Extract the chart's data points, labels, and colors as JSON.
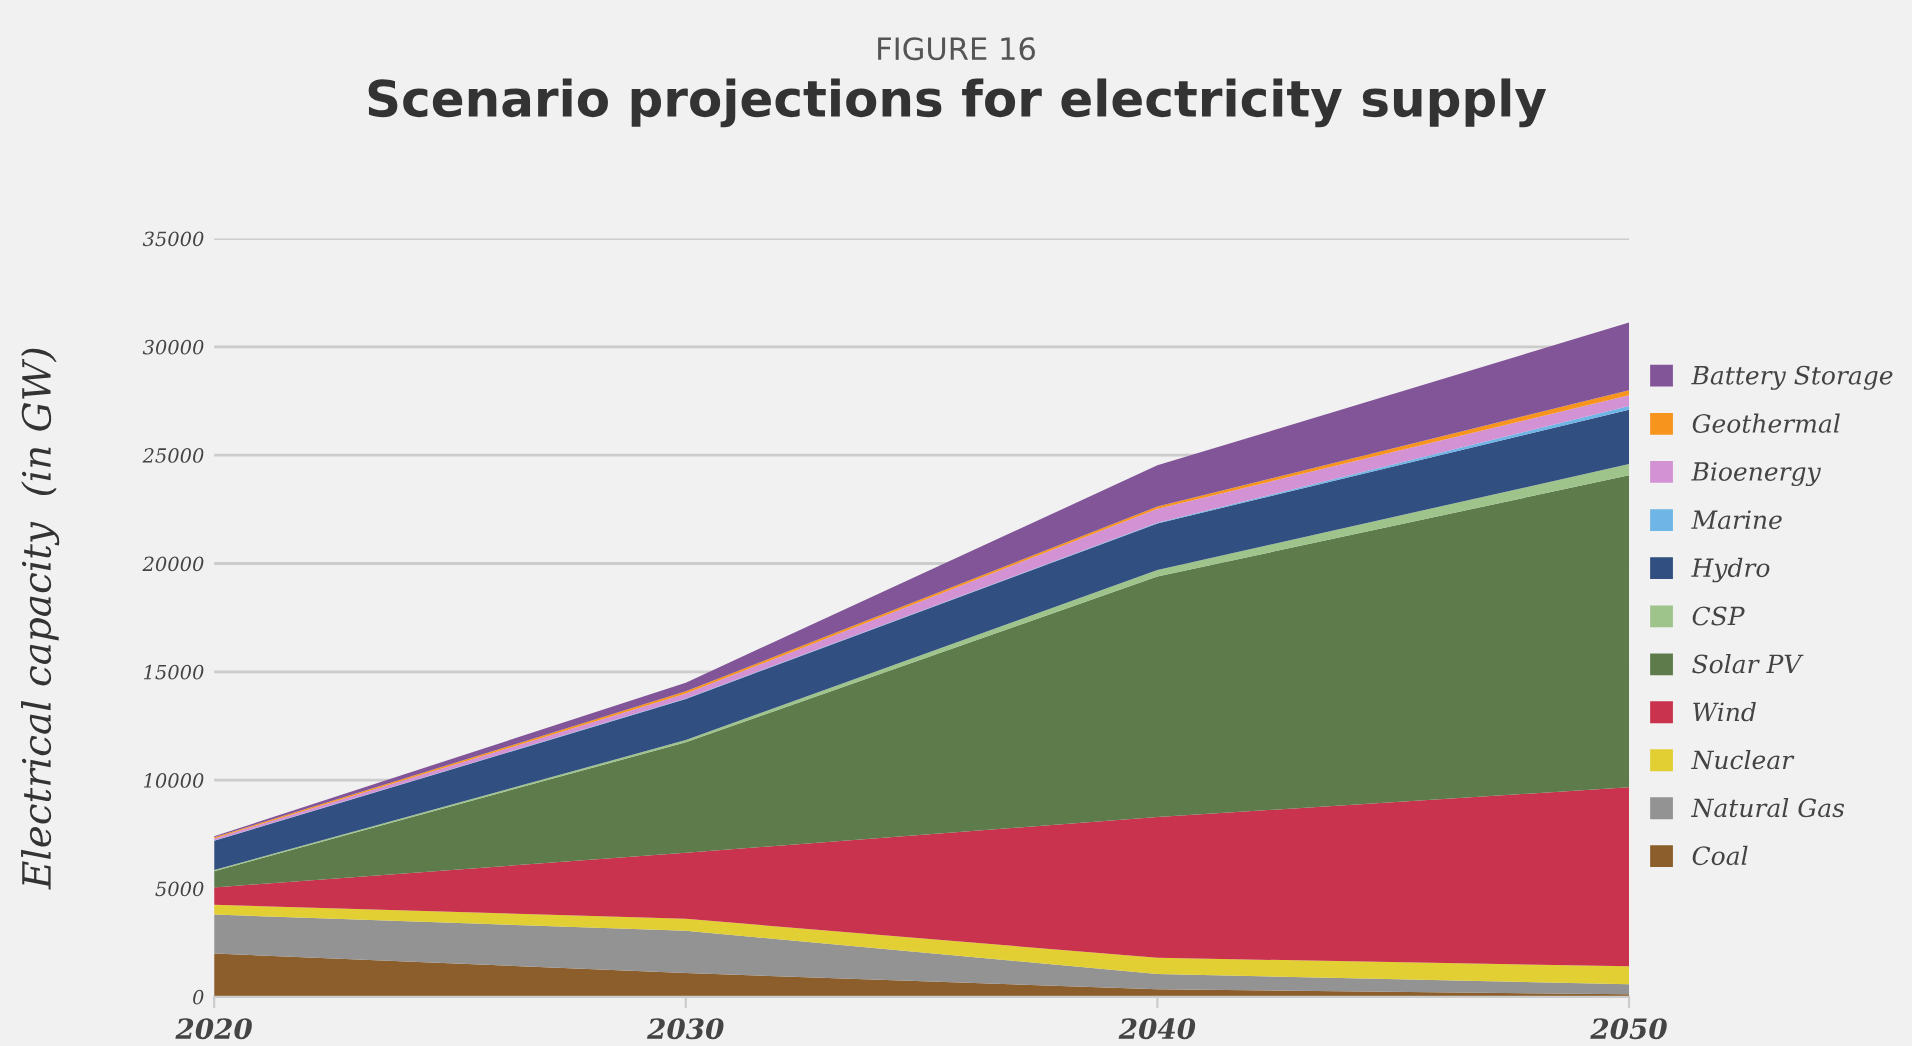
{
  "chart_data": {
    "type": "area",
    "stacked": true,
    "subtitle": "FIGURE 16",
    "title": "Scenario projections for electricity supply",
    "ylabel": "Electrical capacity  (in GW)",
    "x": [
      2020,
      2030,
      2040,
      2050
    ],
    "xlim": [
      2020,
      2050
    ],
    "xticks": [
      2020,
      2030,
      2040,
      2050
    ],
    "ylim": [
      0,
      35000
    ],
    "yticks": [
      0,
      5000,
      10000,
      15000,
      20000,
      25000,
      30000,
      35000
    ],
    "grid": "y",
    "legend": "right",
    "series": [
      {
        "name": "Coal",
        "color": "#8b5e2b",
        "values": [
          2000,
          1100,
          350,
          120
        ]
      },
      {
        "name": "Natural Gas",
        "color": "#939393",
        "values": [
          1800,
          1950,
          700,
          460
        ]
      },
      {
        "name": "Nuclear",
        "color": "#e2cf33",
        "values": [
          450,
          550,
          750,
          830
        ]
      },
      {
        "name": "Wind",
        "color": "#c9334d",
        "values": [
          800,
          3050,
          6500,
          8260
        ]
      },
      {
        "name": "Solar PV",
        "color": "#5e7b4c",
        "values": [
          750,
          5100,
          11100,
          14400
        ]
      },
      {
        "name": "CSP",
        "color": "#9ec48b",
        "values": [
          50,
          100,
          300,
          520
        ]
      },
      {
        "name": "Hydro",
        "color": "#314f80",
        "values": [
          1350,
          1900,
          2150,
          2510
        ]
      },
      {
        "name": "Marine",
        "color": "#6fb5e6",
        "values": [
          10,
          20,
          30,
          170
        ]
      },
      {
        "name": "Bioenergy",
        "color": "#d392d3",
        "values": [
          100,
          230,
          650,
          490
        ]
      },
      {
        "name": "Geothermal",
        "color": "#f7941d",
        "values": [
          50,
          100,
          100,
          240
        ]
      },
      {
        "name": "Battery Storage",
        "color": "#825498",
        "values": [
          50,
          400,
          1900,
          3120
        ]
      }
    ]
  }
}
